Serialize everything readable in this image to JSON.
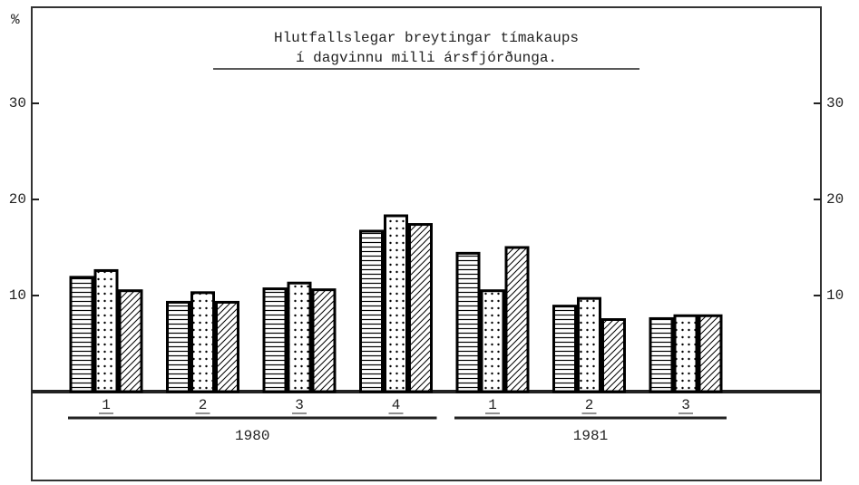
{
  "chart_data": {
    "type": "bar",
    "title_lines": [
      "Hlutfallslegar breytingar tímakaups",
      "í dagvinnu milli ársfjórðunga."
    ],
    "y_label": "%",
    "groups": [
      {
        "label": "1980",
        "categories": [
          "1",
          "2",
          "3",
          "4"
        ]
      },
      {
        "label": "1981",
        "categories": [
          "1",
          "2",
          "3"
        ]
      }
    ],
    "series": [
      {
        "color": "#000000",
        "pattern": "horizontal",
        "values": [
          11.9,
          9.3,
          10.7,
          16.7,
          14.4,
          8.9,
          7.6
        ]
      },
      {
        "color": "#000000",
        "pattern": "dots",
        "values": [
          12.6,
          10.3,
          11.3,
          18.3,
          10.5,
          9.7,
          7.9
        ]
      },
      {
        "color": "#000000",
        "pattern": "diagonal",
        "values": [
          10.5,
          9.3,
          10.6,
          17.4,
          15.0,
          7.5,
          7.9
        ]
      }
    ],
    "ylim": [
      0,
      40
    ],
    "yticks": [
      10,
      20,
      30
    ],
    "y2lim": [
      0,
      40
    ],
    "y2ticks": [
      10,
      20,
      30
    ]
  }
}
